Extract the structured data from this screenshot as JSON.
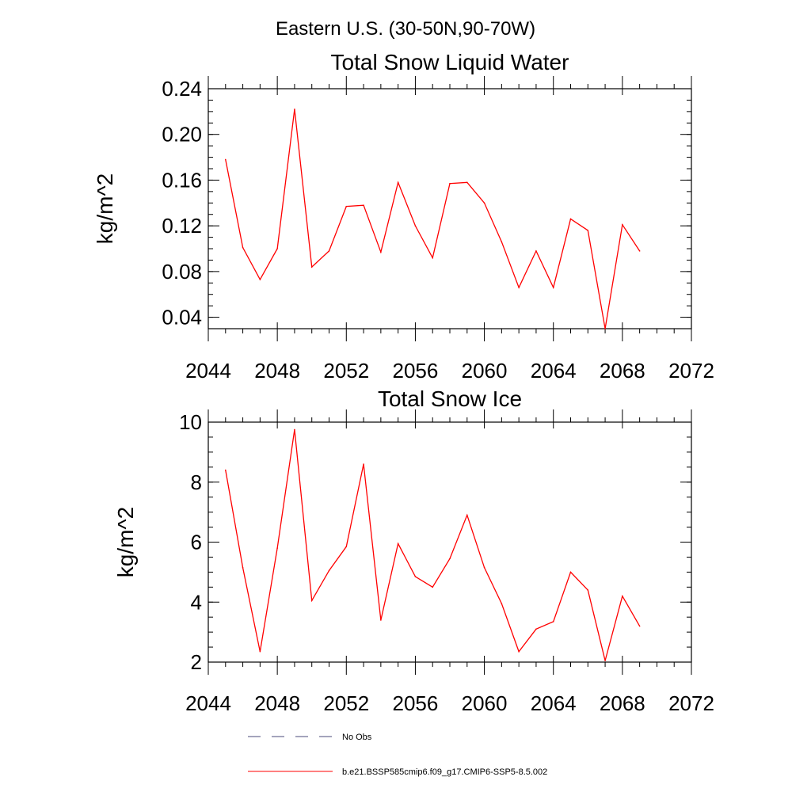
{
  "figure_title": "Eastern U.S. (30-50N,90-70W)",
  "chart_data": [
    {
      "type": "line",
      "title": "Total Snow Liquid Water",
      "xlabel": "",
      "ylabel": "kg/m^2",
      "xlim": [
        2044,
        2072
      ],
      "ylim": [
        0.03,
        0.24
      ],
      "xticks": [
        2044,
        2048,
        2052,
        2056,
        2060,
        2064,
        2068,
        2072
      ],
      "xtick_labels": [
        "2044",
        "2048",
        "2052",
        "2056",
        "2060",
        "2064",
        "2068",
        "2072"
      ],
      "yticks": [
        0.04,
        0.08,
        0.12,
        0.16,
        0.2,
        0.24
      ],
      "ytick_labels": [
        "0.04",
        "0.08",
        "0.12",
        "0.16",
        "0.20",
        "0.24"
      ],
      "grid": false,
      "series": [
        {
          "name": "b.e21.BSSP585cmip6.f09_g17.CMIP6-SSP5-8.5.002",
          "color": "#ff0000",
          "x": [
            2045,
            2046,
            2047,
            2048,
            2049,
            2050,
            2051,
            2052,
            2053,
            2054,
            2055,
            2056,
            2057,
            2058,
            2059,
            2060,
            2061,
            2062,
            2063,
            2064,
            2065,
            2066,
            2067,
            2068,
            2069
          ],
          "y": [
            0.178,
            0.101,
            0.073,
            0.1,
            0.222,
            0.084,
            0.098,
            0.137,
            0.138,
            0.097,
            0.158,
            0.12,
            0.092,
            0.157,
            0.158,
            0.14,
            0.106,
            0.066,
            0.098,
            0.066,
            0.126,
            0.116,
            0.03,
            0.121,
            0.098
          ]
        }
      ]
    },
    {
      "type": "line",
      "title": "Total Snow Ice",
      "xlabel": "",
      "ylabel": "kg/m^2",
      "xlim": [
        2044,
        2072
      ],
      "ylim": [
        2,
        10
      ],
      "xticks": [
        2044,
        2048,
        2052,
        2056,
        2060,
        2064,
        2068,
        2072
      ],
      "xtick_labels": [
        "2044",
        "2048",
        "2052",
        "2056",
        "2060",
        "2064",
        "2068",
        "2072"
      ],
      "yticks": [
        2,
        4,
        6,
        8,
        10
      ],
      "ytick_labels": [
        "2",
        "4",
        "6",
        "8",
        "10"
      ],
      "grid": false,
      "series": [
        {
          "name": "b.e21.BSSP585cmip6.f09_g17.CMIP6-SSP5-8.5.002",
          "color": "#ff0000",
          "x": [
            2045,
            2046,
            2047,
            2048,
            2049,
            2050,
            2051,
            2052,
            2053,
            2054,
            2055,
            2056,
            2057,
            2058,
            2059,
            2060,
            2061,
            2062,
            2063,
            2064,
            2065,
            2066,
            2067,
            2068,
            2069
          ],
          "y": [
            8.4,
            5.15,
            2.35,
            5.8,
            9.75,
            4.05,
            5.05,
            5.85,
            8.6,
            3.4,
            5.95,
            4.85,
            4.5,
            5.45,
            6.9,
            5.15,
            3.95,
            2.35,
            3.1,
            3.35,
            5.0,
            4.4,
            2.05,
            4.2,
            3.2
          ]
        }
      ]
    }
  ],
  "legend": [
    {
      "label": "No Obs",
      "style": "dashed",
      "color": "#4a4a7a"
    },
    {
      "label": "b.e21.BSSP585cmip6.f09_g17.CMIP6-SSP5-8.5.002",
      "style": "solid",
      "color": "#ff0000"
    }
  ]
}
